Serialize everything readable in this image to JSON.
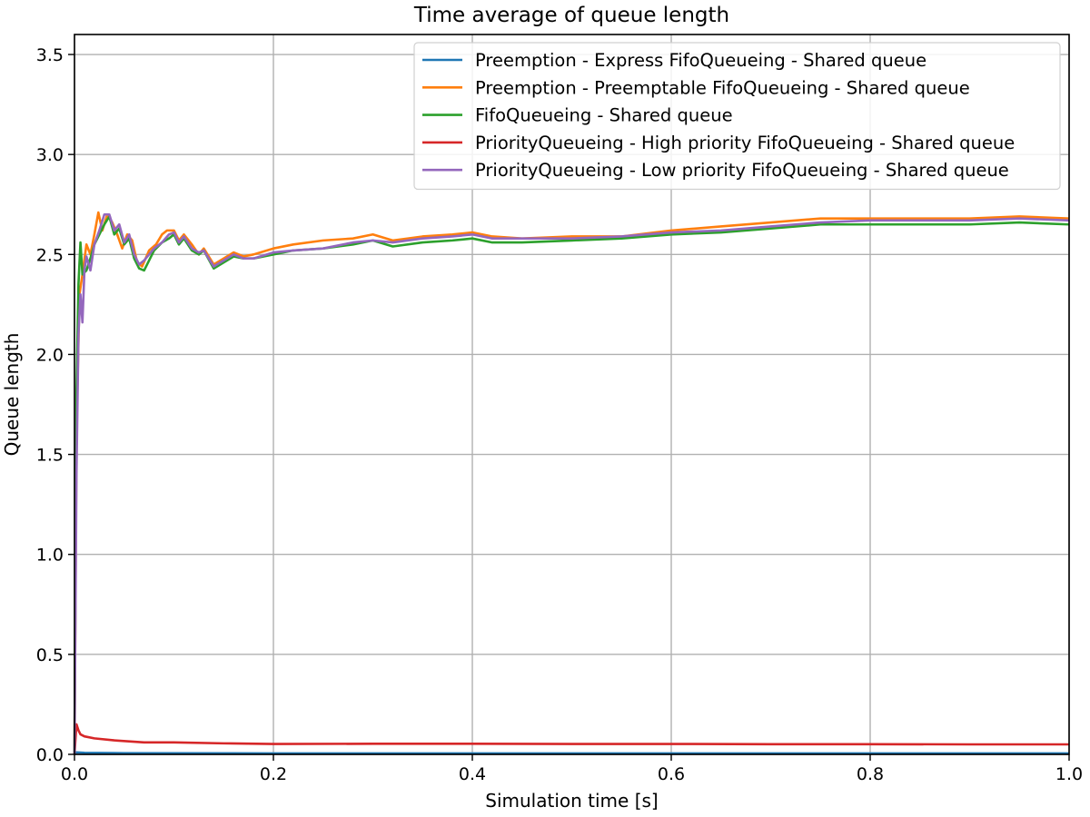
{
  "chart_data": {
    "type": "line",
    "title": "Time average of queue length",
    "xlabel": "Simulation time [s]",
    "ylabel": "Queue length",
    "xlim": [
      0,
      1.0
    ],
    "ylim": [
      0,
      3.6
    ],
    "x_ticks": [
      {
        "value": 0.0,
        "label": "0.0"
      },
      {
        "value": 0.2,
        "label": "0.2"
      },
      {
        "value": 0.4,
        "label": "0.4"
      },
      {
        "value": 0.6,
        "label": "0.6"
      },
      {
        "value": 0.8,
        "label": "0.8"
      },
      {
        "value": 1.0,
        "label": "1.0"
      }
    ],
    "y_ticks": [
      {
        "value": 0.0,
        "label": "0.0"
      },
      {
        "value": 0.5,
        "label": "0.5"
      },
      {
        "value": 1.0,
        "label": "1.0"
      },
      {
        "value": 1.5,
        "label": "1.5"
      },
      {
        "value": 2.0,
        "label": "2.0"
      },
      {
        "value": 2.5,
        "label": "2.5"
      },
      {
        "value": 3.0,
        "label": "3.0"
      },
      {
        "value": 3.5,
        "label": "3.5"
      }
    ],
    "grid": true,
    "legend_position": "top-right",
    "series": [
      {
        "name": "Preemption - Express FifoQueueing - Shared queue",
        "color": "#1f77b4",
        "points": [
          [
            0.0,
            0.0
          ],
          [
            0.002,
            0.01
          ],
          [
            0.01,
            0.008
          ],
          [
            0.05,
            0.006
          ],
          [
            0.2,
            0.005
          ],
          [
            0.5,
            0.005
          ],
          [
            1.0,
            0.005
          ]
        ]
      },
      {
        "name": "Preemption - Preemptable FifoQueueing - Shared queue",
        "color": "#ff7f0e",
        "points": [
          [
            0.0,
            0.0
          ],
          [
            0.002,
            1.6
          ],
          [
            0.005,
            2.3
          ],
          [
            0.008,
            2.4
          ],
          [
            0.012,
            2.55
          ],
          [
            0.016,
            2.5
          ],
          [
            0.02,
            2.6
          ],
          [
            0.024,
            2.71
          ],
          [
            0.028,
            2.62
          ],
          [
            0.033,
            2.7
          ],
          [
            0.038,
            2.66
          ],
          [
            0.043,
            2.6
          ],
          [
            0.048,
            2.53
          ],
          [
            0.053,
            2.6
          ],
          [
            0.058,
            2.57
          ],
          [
            0.063,
            2.46
          ],
          [
            0.068,
            2.44
          ],
          [
            0.075,
            2.52
          ],
          [
            0.082,
            2.55
          ],
          [
            0.088,
            2.6
          ],
          [
            0.093,
            2.62
          ],
          [
            0.1,
            2.62
          ],
          [
            0.105,
            2.57
          ],
          [
            0.11,
            2.6
          ],
          [
            0.118,
            2.55
          ],
          [
            0.125,
            2.5
          ],
          [
            0.13,
            2.53
          ],
          [
            0.14,
            2.45
          ],
          [
            0.15,
            2.48
          ],
          [
            0.16,
            2.51
          ],
          [
            0.17,
            2.49
          ],
          [
            0.18,
            2.5
          ],
          [
            0.2,
            2.53
          ],
          [
            0.22,
            2.55
          ],
          [
            0.25,
            2.57
          ],
          [
            0.28,
            2.58
          ],
          [
            0.3,
            2.6
          ],
          [
            0.32,
            2.57
          ],
          [
            0.35,
            2.59
          ],
          [
            0.38,
            2.6
          ],
          [
            0.4,
            2.61
          ],
          [
            0.42,
            2.59
          ],
          [
            0.45,
            2.58
          ],
          [
            0.5,
            2.59
          ],
          [
            0.55,
            2.59
          ],
          [
            0.6,
            2.62
          ],
          [
            0.65,
            2.64
          ],
          [
            0.7,
            2.66
          ],
          [
            0.75,
            2.68
          ],
          [
            0.8,
            2.68
          ],
          [
            0.85,
            2.68
          ],
          [
            0.9,
            2.68
          ],
          [
            0.95,
            2.69
          ],
          [
            1.0,
            2.68
          ]
        ]
      },
      {
        "name": "FifoQueueing - Shared queue",
        "color": "#2ca02c",
        "points": [
          [
            0.0,
            0.0
          ],
          [
            0.002,
            1.8
          ],
          [
            0.004,
            2.35
          ],
          [
            0.006,
            2.56
          ],
          [
            0.008,
            2.4
          ],
          [
            0.012,
            2.42
          ],
          [
            0.016,
            2.48
          ],
          [
            0.02,
            2.55
          ],
          [
            0.025,
            2.6
          ],
          [
            0.03,
            2.65
          ],
          [
            0.035,
            2.69
          ],
          [
            0.04,
            2.6
          ],
          [
            0.045,
            2.63
          ],
          [
            0.05,
            2.55
          ],
          [
            0.055,
            2.58
          ],
          [
            0.06,
            2.48
          ],
          [
            0.065,
            2.43
          ],
          [
            0.07,
            2.42
          ],
          [
            0.075,
            2.47
          ],
          [
            0.08,
            2.52
          ],
          [
            0.088,
            2.56
          ],
          [
            0.095,
            2.58
          ],
          [
            0.1,
            2.6
          ],
          [
            0.105,
            2.55
          ],
          [
            0.11,
            2.58
          ],
          [
            0.118,
            2.52
          ],
          [
            0.125,
            2.5
          ],
          [
            0.13,
            2.52
          ],
          [
            0.14,
            2.43
          ],
          [
            0.15,
            2.46
          ],
          [
            0.16,
            2.49
          ],
          [
            0.17,
            2.48
          ],
          [
            0.18,
            2.48
          ],
          [
            0.2,
            2.5
          ],
          [
            0.22,
            2.52
          ],
          [
            0.25,
            2.53
          ],
          [
            0.28,
            2.55
          ],
          [
            0.3,
            2.57
          ],
          [
            0.32,
            2.54
          ],
          [
            0.35,
            2.56
          ],
          [
            0.38,
            2.57
          ],
          [
            0.4,
            2.58
          ],
          [
            0.42,
            2.56
          ],
          [
            0.45,
            2.56
          ],
          [
            0.5,
            2.57
          ],
          [
            0.55,
            2.58
          ],
          [
            0.6,
            2.6
          ],
          [
            0.65,
            2.61
          ],
          [
            0.7,
            2.63
          ],
          [
            0.75,
            2.65
          ],
          [
            0.8,
            2.65
          ],
          [
            0.85,
            2.65
          ],
          [
            0.9,
            2.65
          ],
          [
            0.95,
            2.66
          ],
          [
            1.0,
            2.65
          ]
        ]
      },
      {
        "name": "PriorityQueueing - High priority FifoQueueing - Shared queue",
        "color": "#d62728",
        "points": [
          [
            0.0,
            0.0
          ],
          [
            0.002,
            0.15
          ],
          [
            0.004,
            0.12
          ],
          [
            0.006,
            0.1
          ],
          [
            0.01,
            0.09
          ],
          [
            0.02,
            0.08
          ],
          [
            0.04,
            0.07
          ],
          [
            0.07,
            0.06
          ],
          [
            0.1,
            0.06
          ],
          [
            0.15,
            0.055
          ],
          [
            0.2,
            0.052
          ],
          [
            0.3,
            0.053
          ],
          [
            0.4,
            0.053
          ],
          [
            0.5,
            0.052
          ],
          [
            0.6,
            0.052
          ],
          [
            0.7,
            0.051
          ],
          [
            0.8,
            0.051
          ],
          [
            0.9,
            0.05
          ],
          [
            1.0,
            0.05
          ]
        ]
      },
      {
        "name": "PriorityQueueing - Low priority FifoQueueing - Shared queue",
        "color": "#9467bd",
        "points": [
          [
            0.0,
            0.0
          ],
          [
            0.002,
            1.4
          ],
          [
            0.004,
            2.1
          ],
          [
            0.006,
            2.3
          ],
          [
            0.008,
            2.16
          ],
          [
            0.01,
            2.42
          ],
          [
            0.012,
            2.49
          ],
          [
            0.016,
            2.42
          ],
          [
            0.02,
            2.55
          ],
          [
            0.025,
            2.62
          ],
          [
            0.03,
            2.7
          ],
          [
            0.035,
            2.7
          ],
          [
            0.04,
            2.62
          ],
          [
            0.045,
            2.65
          ],
          [
            0.05,
            2.56
          ],
          [
            0.055,
            2.6
          ],
          [
            0.06,
            2.5
          ],
          [
            0.065,
            2.45
          ],
          [
            0.07,
            2.47
          ],
          [
            0.075,
            2.5
          ],
          [
            0.08,
            2.53
          ],
          [
            0.088,
            2.56
          ],
          [
            0.095,
            2.6
          ],
          [
            0.1,
            2.61
          ],
          [
            0.105,
            2.56
          ],
          [
            0.11,
            2.59
          ],
          [
            0.118,
            2.53
          ],
          [
            0.125,
            2.51
          ],
          [
            0.13,
            2.52
          ],
          [
            0.14,
            2.44
          ],
          [
            0.15,
            2.47
          ],
          [
            0.16,
            2.5
          ],
          [
            0.17,
            2.48
          ],
          [
            0.18,
            2.48
          ],
          [
            0.2,
            2.51
          ],
          [
            0.22,
            2.52
          ],
          [
            0.25,
            2.53
          ],
          [
            0.28,
            2.56
          ],
          [
            0.3,
            2.57
          ],
          [
            0.32,
            2.56
          ],
          [
            0.35,
            2.58
          ],
          [
            0.38,
            2.59
          ],
          [
            0.4,
            2.6
          ],
          [
            0.42,
            2.58
          ],
          [
            0.45,
            2.58
          ],
          [
            0.5,
            2.58
          ],
          [
            0.55,
            2.59
          ],
          [
            0.6,
            2.61
          ],
          [
            0.65,
            2.62
          ],
          [
            0.7,
            2.64
          ],
          [
            0.75,
            2.66
          ],
          [
            0.8,
            2.67
          ],
          [
            0.85,
            2.67
          ],
          [
            0.9,
            2.67
          ],
          [
            0.95,
            2.68
          ],
          [
            1.0,
            2.67
          ]
        ]
      }
    ]
  }
}
